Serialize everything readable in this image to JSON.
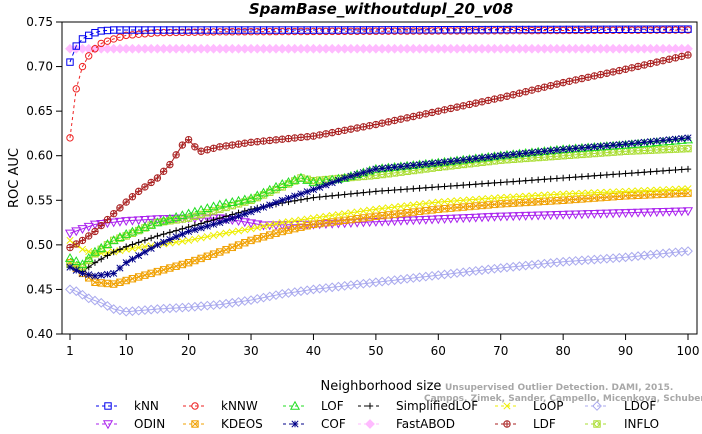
{
  "chart_data": {
    "type": "line",
    "title": "SpamBase_withoutdupl_20_v08",
    "xlabel": "Neighborhood size",
    "ylabel": "ROC AUC",
    "xlim": [
      1,
      100
    ],
    "ylim": [
      0.4,
      0.75
    ],
    "xticks": [
      "1",
      "10",
      "20",
      "30",
      "40",
      "50",
      "60",
      "70",
      "80",
      "90",
      "100"
    ],
    "yticks": [
      "0.40",
      "0.45",
      "0.50",
      "0.55",
      "0.60",
      "0.65",
      "0.70",
      "0.75"
    ],
    "legend_position": "bottom",
    "grid": false,
    "series": [
      {
        "name": "kNN",
        "color": "#0000ee",
        "marker": "square",
        "dash": "4,3",
        "anchors": [
          [
            1,
            0.705
          ],
          [
            2,
            0.723
          ],
          [
            3,
            0.731
          ],
          [
            4,
            0.735
          ],
          [
            5,
            0.738
          ],
          [
            6,
            0.74
          ],
          [
            8,
            0.741
          ],
          [
            15,
            0.741
          ],
          [
            40,
            0.741
          ],
          [
            100,
            0.742
          ]
        ]
      },
      {
        "name": "kNNW",
        "color": "#ee2222",
        "marker": "circle",
        "dash": "3,3",
        "anchors": [
          [
            1,
            0.62
          ],
          [
            2,
            0.675
          ],
          [
            3,
            0.7
          ],
          [
            4,
            0.712
          ],
          [
            5,
            0.72
          ],
          [
            6,
            0.726
          ],
          [
            8,
            0.731
          ],
          [
            10,
            0.735
          ],
          [
            15,
            0.738
          ],
          [
            25,
            0.739
          ],
          [
            100,
            0.741
          ]
        ]
      },
      {
        "name": "LOF",
        "color": "#22dd22",
        "marker": "triangle",
        "dash": "4,3",
        "anchors": [
          [
            1,
            0.485
          ],
          [
            3,
            0.478
          ],
          [
            5,
            0.492
          ],
          [
            8,
            0.505
          ],
          [
            10,
            0.512
          ],
          [
            15,
            0.525
          ],
          [
            20,
            0.535
          ],
          [
            25,
            0.545
          ],
          [
            30,
            0.552
          ],
          [
            35,
            0.568
          ],
          [
            38,
            0.575
          ],
          [
            40,
            0.57
          ],
          [
            45,
            0.575
          ],
          [
            50,
            0.585
          ],
          [
            60,
            0.592
          ],
          [
            70,
            0.6
          ],
          [
            80,
            0.607
          ],
          [
            90,
            0.612
          ],
          [
            100,
            0.618
          ]
        ]
      },
      {
        "name": "SimplifiedLOF",
        "color": "#000000",
        "marker": "plus",
        "dash": "",
        "anchors": [
          [
            1,
            0.475
          ],
          [
            3,
            0.47
          ],
          [
            5,
            0.48
          ],
          [
            8,
            0.492
          ],
          [
            10,
            0.498
          ],
          [
            15,
            0.51
          ],
          [
            20,
            0.52
          ],
          [
            25,
            0.53
          ],
          [
            30,
            0.54
          ],
          [
            35,
            0.547
          ],
          [
            40,
            0.553
          ],
          [
            50,
            0.56
          ],
          [
            60,
            0.565
          ],
          [
            70,
            0.57
          ],
          [
            80,
            0.575
          ],
          [
            90,
            0.58
          ],
          [
            100,
            0.585
          ]
        ]
      },
      {
        "name": "LoOP",
        "color": "#eeee00",
        "marker": "x",
        "dash": "",
        "anchors": [
          [
            1,
            0.505
          ],
          [
            3,
            0.495
          ],
          [
            5,
            0.49
          ],
          [
            8,
            0.492
          ],
          [
            10,
            0.495
          ],
          [
            15,
            0.5
          ],
          [
            20,
            0.505
          ],
          [
            25,
            0.512
          ],
          [
            30,
            0.518
          ],
          [
            35,
            0.525
          ],
          [
            40,
            0.53
          ],
          [
            50,
            0.54
          ],
          [
            60,
            0.548
          ],
          [
            70,
            0.553
          ],
          [
            80,
            0.557
          ],
          [
            90,
            0.56
          ],
          [
            100,
            0.563
          ]
        ]
      },
      {
        "name": "LDOF",
        "color": "#aaaaee",
        "marker": "diamond",
        "dash": "",
        "anchors": [
          [
            1,
            0.45
          ],
          [
            2,
            0.448
          ],
          [
            4,
            0.44
          ],
          [
            6,
            0.435
          ],
          [
            8,
            0.428
          ],
          [
            10,
            0.425
          ],
          [
            15,
            0.428
          ],
          [
            20,
            0.43
          ],
          [
            25,
            0.433
          ],
          [
            30,
            0.438
          ],
          [
            35,
            0.445
          ],
          [
            40,
            0.45
          ],
          [
            50,
            0.458
          ],
          [
            60,
            0.466
          ],
          [
            70,
            0.474
          ],
          [
            80,
            0.481
          ],
          [
            90,
            0.486
          ],
          [
            100,
            0.493
          ]
        ]
      },
      {
        "name": "ODIN",
        "color": "#aa22ee",
        "marker": "triangle-down",
        "dash": "",
        "anchors": [
          [
            1,
            0.513
          ],
          [
            3,
            0.518
          ],
          [
            5,
            0.523
          ],
          [
            10,
            0.527
          ],
          [
            15,
            0.529
          ],
          [
            20,
            0.53
          ],
          [
            25,
            0.53
          ],
          [
            28,
            0.527
          ],
          [
            32,
            0.522
          ],
          [
            40,
            0.523
          ],
          [
            50,
            0.526
          ],
          [
            60,
            0.529
          ],
          [
            70,
            0.532
          ],
          [
            80,
            0.534
          ],
          [
            90,
            0.536
          ],
          [
            100,
            0.538
          ]
        ]
      },
      {
        "name": "KDEOS",
        "color": "#f0a000",
        "marker": "square-x",
        "dash": "",
        "anchors": [
          [
            1,
            0.48
          ],
          [
            3,
            0.468
          ],
          [
            5,
            0.458
          ],
          [
            8,
            0.456
          ],
          [
            10,
            0.46
          ],
          [
            15,
            0.47
          ],
          [
            20,
            0.48
          ],
          [
            25,
            0.492
          ],
          [
            30,
            0.505
          ],
          [
            35,
            0.515
          ],
          [
            40,
            0.523
          ],
          [
            50,
            0.532
          ],
          [
            60,
            0.54
          ],
          [
            70,
            0.546
          ],
          [
            80,
            0.55
          ],
          [
            90,
            0.555
          ],
          [
            100,
            0.558
          ]
        ]
      },
      {
        "name": "COF",
        "color": "#000088",
        "marker": "asterisk",
        "dash": "",
        "anchors": [
          [
            1,
            0.475
          ],
          [
            3,
            0.468
          ],
          [
            5,
            0.465
          ],
          [
            8,
            0.468
          ],
          [
            10,
            0.48
          ],
          [
            15,
            0.5
          ],
          [
            20,
            0.515
          ],
          [
            25,
            0.525
          ],
          [
            30,
            0.537
          ],
          [
            35,
            0.55
          ],
          [
            40,
            0.562
          ],
          [
            45,
            0.575
          ],
          [
            50,
            0.585
          ],
          [
            60,
            0.592
          ],
          [
            70,
            0.6
          ],
          [
            80,
            0.607
          ],
          [
            90,
            0.613
          ],
          [
            100,
            0.62
          ]
        ]
      },
      {
        "name": "FastABOD",
        "color": "#ffbbff",
        "marker": "diamond-filled",
        "dash": "",
        "anchors": [
          [
            1,
            0.72
          ],
          [
            100,
            0.72
          ]
        ]
      },
      {
        "name": "LDF",
        "color": "#aa2222",
        "marker": "circle-plus",
        "dash": "",
        "anchors": [
          [
            1,
            0.497
          ],
          [
            3,
            0.505
          ],
          [
            5,
            0.515
          ],
          [
            8,
            0.535
          ],
          [
            10,
            0.548
          ],
          [
            12,
            0.56
          ],
          [
            15,
            0.575
          ],
          [
            17,
            0.59
          ],
          [
            19,
            0.612
          ],
          [
            20,
            0.618
          ],
          [
            21,
            0.61
          ],
          [
            22,
            0.605
          ],
          [
            25,
            0.61
          ],
          [
            30,
            0.615
          ],
          [
            40,
            0.622
          ],
          [
            50,
            0.635
          ],
          [
            60,
            0.65
          ],
          [
            70,
            0.665
          ],
          [
            80,
            0.682
          ],
          [
            90,
            0.697
          ],
          [
            100,
            0.713
          ]
        ]
      },
      {
        "name": "INFLO",
        "color": "#aadd33",
        "marker": "square-diamond",
        "dash": "",
        "anchors": [
          [
            1,
            0.478
          ],
          [
            3,
            0.475
          ],
          [
            5,
            0.49
          ],
          [
            8,
            0.505
          ],
          [
            10,
            0.51
          ],
          [
            15,
            0.525
          ],
          [
            20,
            0.53
          ],
          [
            25,
            0.54
          ],
          [
            30,
            0.55
          ],
          [
            35,
            0.565
          ],
          [
            38,
            0.575
          ],
          [
            40,
            0.572
          ],
          [
            45,
            0.575
          ],
          [
            50,
            0.578
          ],
          [
            60,
            0.587
          ],
          [
            70,
            0.595
          ],
          [
            80,
            0.6
          ],
          [
            90,
            0.605
          ],
          [
            100,
            0.608
          ]
        ]
      }
    ]
  },
  "watermark": {
    "line1": "Unsupervised Outlier Detection. DAMI, 2015.",
    "line2": "Campos, Zimek, Sander, Campello, Micenkova, Schubert, Assent, Houle"
  },
  "legend_order": [
    "kNN",
    "kNNW",
    "LOF",
    "SimplifiedLOF",
    "LoOP",
    "LDOF",
    "ODIN",
    "KDEOS",
    "COF",
    "FastABOD",
    "LDF",
    "INFLO"
  ]
}
